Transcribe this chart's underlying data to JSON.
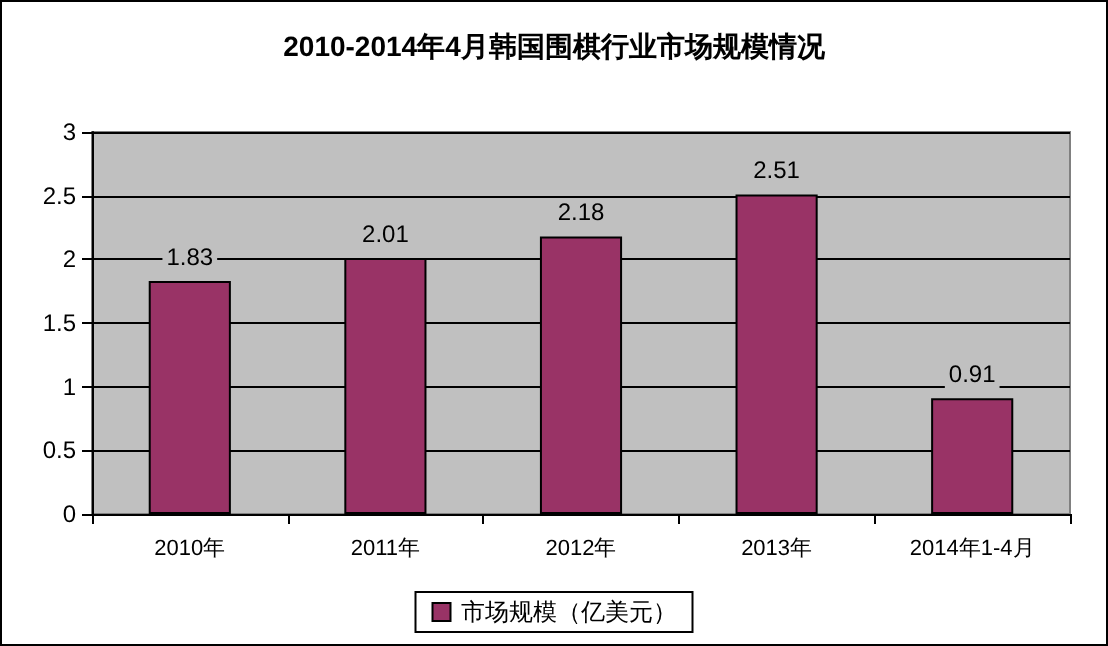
{
  "chart_data": {
    "type": "bar",
    "title": "2010-2014年4月韩国围棋行业市场规模情况",
    "categories": [
      "2010年",
      "2011年",
      "2012年",
      "2013年",
      "2014年1-4月"
    ],
    "series": [
      {
        "name": "市场规模（亿美元）",
        "color": "#993366",
        "values": [
          1.83,
          2.01,
          2.18,
          2.51,
          0.91
        ]
      }
    ],
    "ylim": [
      0,
      3
    ],
    "yticks": [
      0,
      0.5,
      1,
      1.5,
      2,
      2.5,
      3
    ],
    "grid": "y",
    "legend": "bottom",
    "data_labels": true
  }
}
